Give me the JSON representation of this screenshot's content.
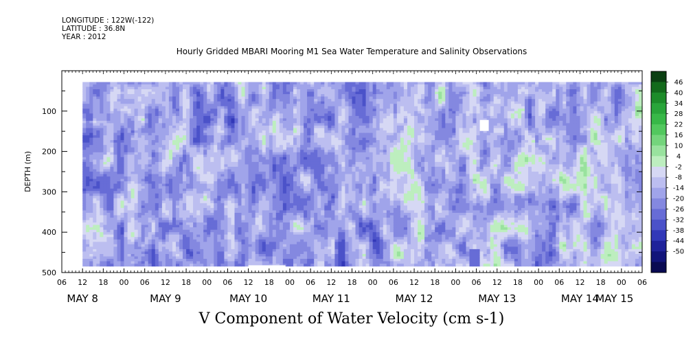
{
  "header": {
    "longitude": "LONGITUDE : 122W(-122)",
    "latitude": "LATITUDE : 36.8N",
    "year": "YEAR : 2012"
  },
  "chart_data": {
    "type": "heatmap",
    "title": "Hourly Gridded MBARI Mooring M1 Sea Water Temperature and Salinity Observations",
    "caption": "V Component of Water Velocity (cm s-1)",
    "ylabel": "DEPTH (m)",
    "ylim": [
      500,
      0
    ],
    "y_ticks": [
      100,
      200,
      300,
      400,
      500
    ],
    "x_range_hours": [
      6,
      174
    ],
    "x_tick_labels": [
      "06",
      "12",
      "18",
      "00",
      "06",
      "12",
      "18",
      "00",
      "06",
      "12",
      "18",
      "00",
      "06",
      "12",
      "18",
      "00",
      "06",
      "12",
      "18",
      "00",
      "06",
      "12",
      "18",
      "00",
      "06",
      "12",
      "18",
      "00",
      "06"
    ],
    "date_labels": [
      "MAY  8",
      "MAY  9",
      "MAY 10",
      "MAY 11",
      "MAY 12",
      "MAY 13",
      "MAY 14",
      "MAY 15"
    ],
    "colorbar_labels": [
      "46",
      "40",
      "34",
      "28",
      "22",
      "16",
      "10",
      "4",
      "-2",
      "-8",
      "-14",
      "-20",
      "-26",
      "-32",
      "-38",
      "-44",
      "-50"
    ],
    "colorbar_colors": [
      "#0b3f12",
      "#136a1c",
      "#1d8c2a",
      "#29a53a",
      "#38b848",
      "#52c85e",
      "#74d57c",
      "#99e29e",
      "#bdeebf",
      "#d6d8f4",
      "#bcbef0",
      "#a0a4ea",
      "#8488e0",
      "#676cd6",
      "#4b52c9",
      "#3238b8",
      "#1f229a",
      "#11147a",
      "#090a52"
    ]
  }
}
